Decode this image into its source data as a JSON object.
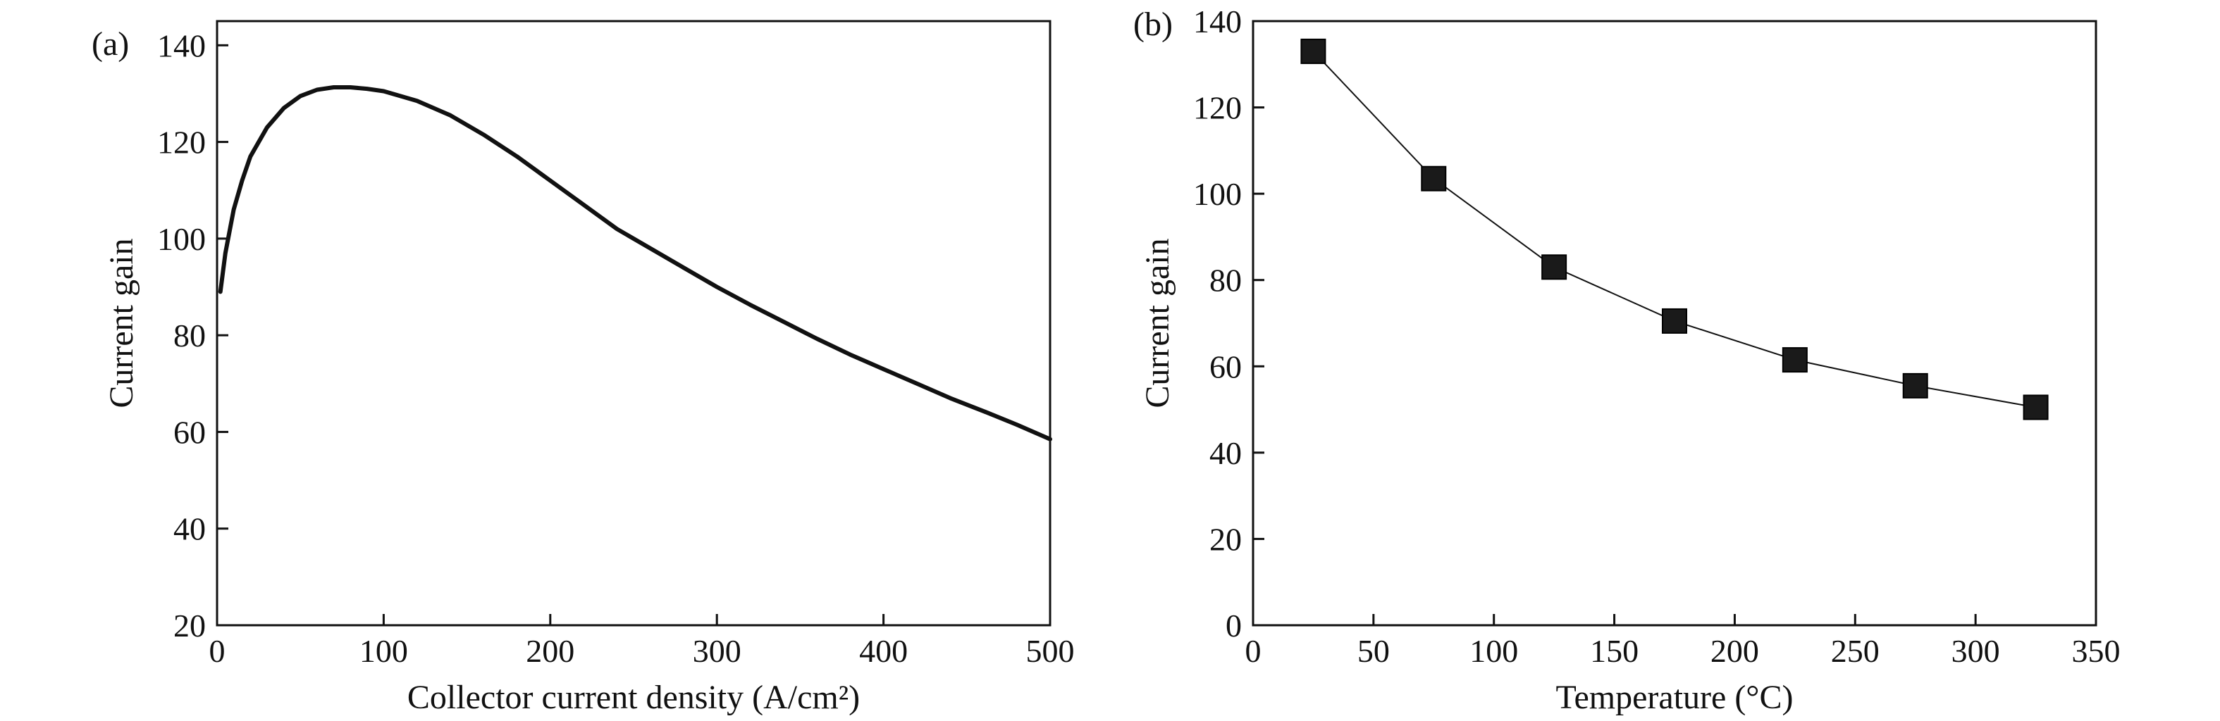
{
  "chart_data": [
    {
      "type": "line",
      "panel_label": "(a)",
      "title": "",
      "xlabel": "Collector current density (A/cm²)",
      "ylabel": "Current gain",
      "xlim": [
        0,
        500
      ],
      "ylim": [
        20,
        145
      ],
      "xticks": [
        0,
        100,
        200,
        300,
        400,
        500
      ],
      "yticks": [
        20,
        40,
        60,
        80,
        100,
        120,
        140
      ],
      "grid": false,
      "series": [
        {
          "color": "#111111",
          "x": [
            2,
            5,
            10,
            15,
            20,
            30,
            40,
            50,
            60,
            70,
            80,
            90,
            100,
            120,
            140,
            160,
            180,
            200,
            220,
            240,
            260,
            280,
            300,
            320,
            340,
            360,
            380,
            400,
            420,
            440,
            460,
            480,
            500
          ],
          "y": [
            89,
            97,
            106,
            112,
            117,
            123,
            127,
            129.5,
            130.8,
            131.3,
            131.3,
            131,
            130.5,
            128.5,
            125.5,
            121.5,
            117,
            112,
            107,
            102,
            98,
            94,
            90,
            86.3,
            82.8,
            79.3,
            76,
            73,
            70,
            67,
            64.3,
            61.5,
            58.5
          ]
        }
      ]
    },
    {
      "type": "line",
      "panel_label": "(b)",
      "title": "",
      "xlabel": "Temperature (°C)",
      "ylabel": "Current gain",
      "xlim": [
        0,
        350
      ],
      "ylim": [
        0,
        140
      ],
      "xticks": [
        0,
        50,
        100,
        150,
        200,
        250,
        300,
        350
      ],
      "yticks": [
        0,
        20,
        40,
        60,
        80,
        100,
        120,
        140
      ],
      "grid": false,
      "marker": "square",
      "series": [
        {
          "color": "#111111",
          "x": [
            25,
            75,
            125,
            175,
            225,
            275,
            325
          ],
          "y": [
            133,
            103.5,
            83,
            70.5,
            61.5,
            55.5,
            50.5
          ]
        }
      ]
    }
  ]
}
